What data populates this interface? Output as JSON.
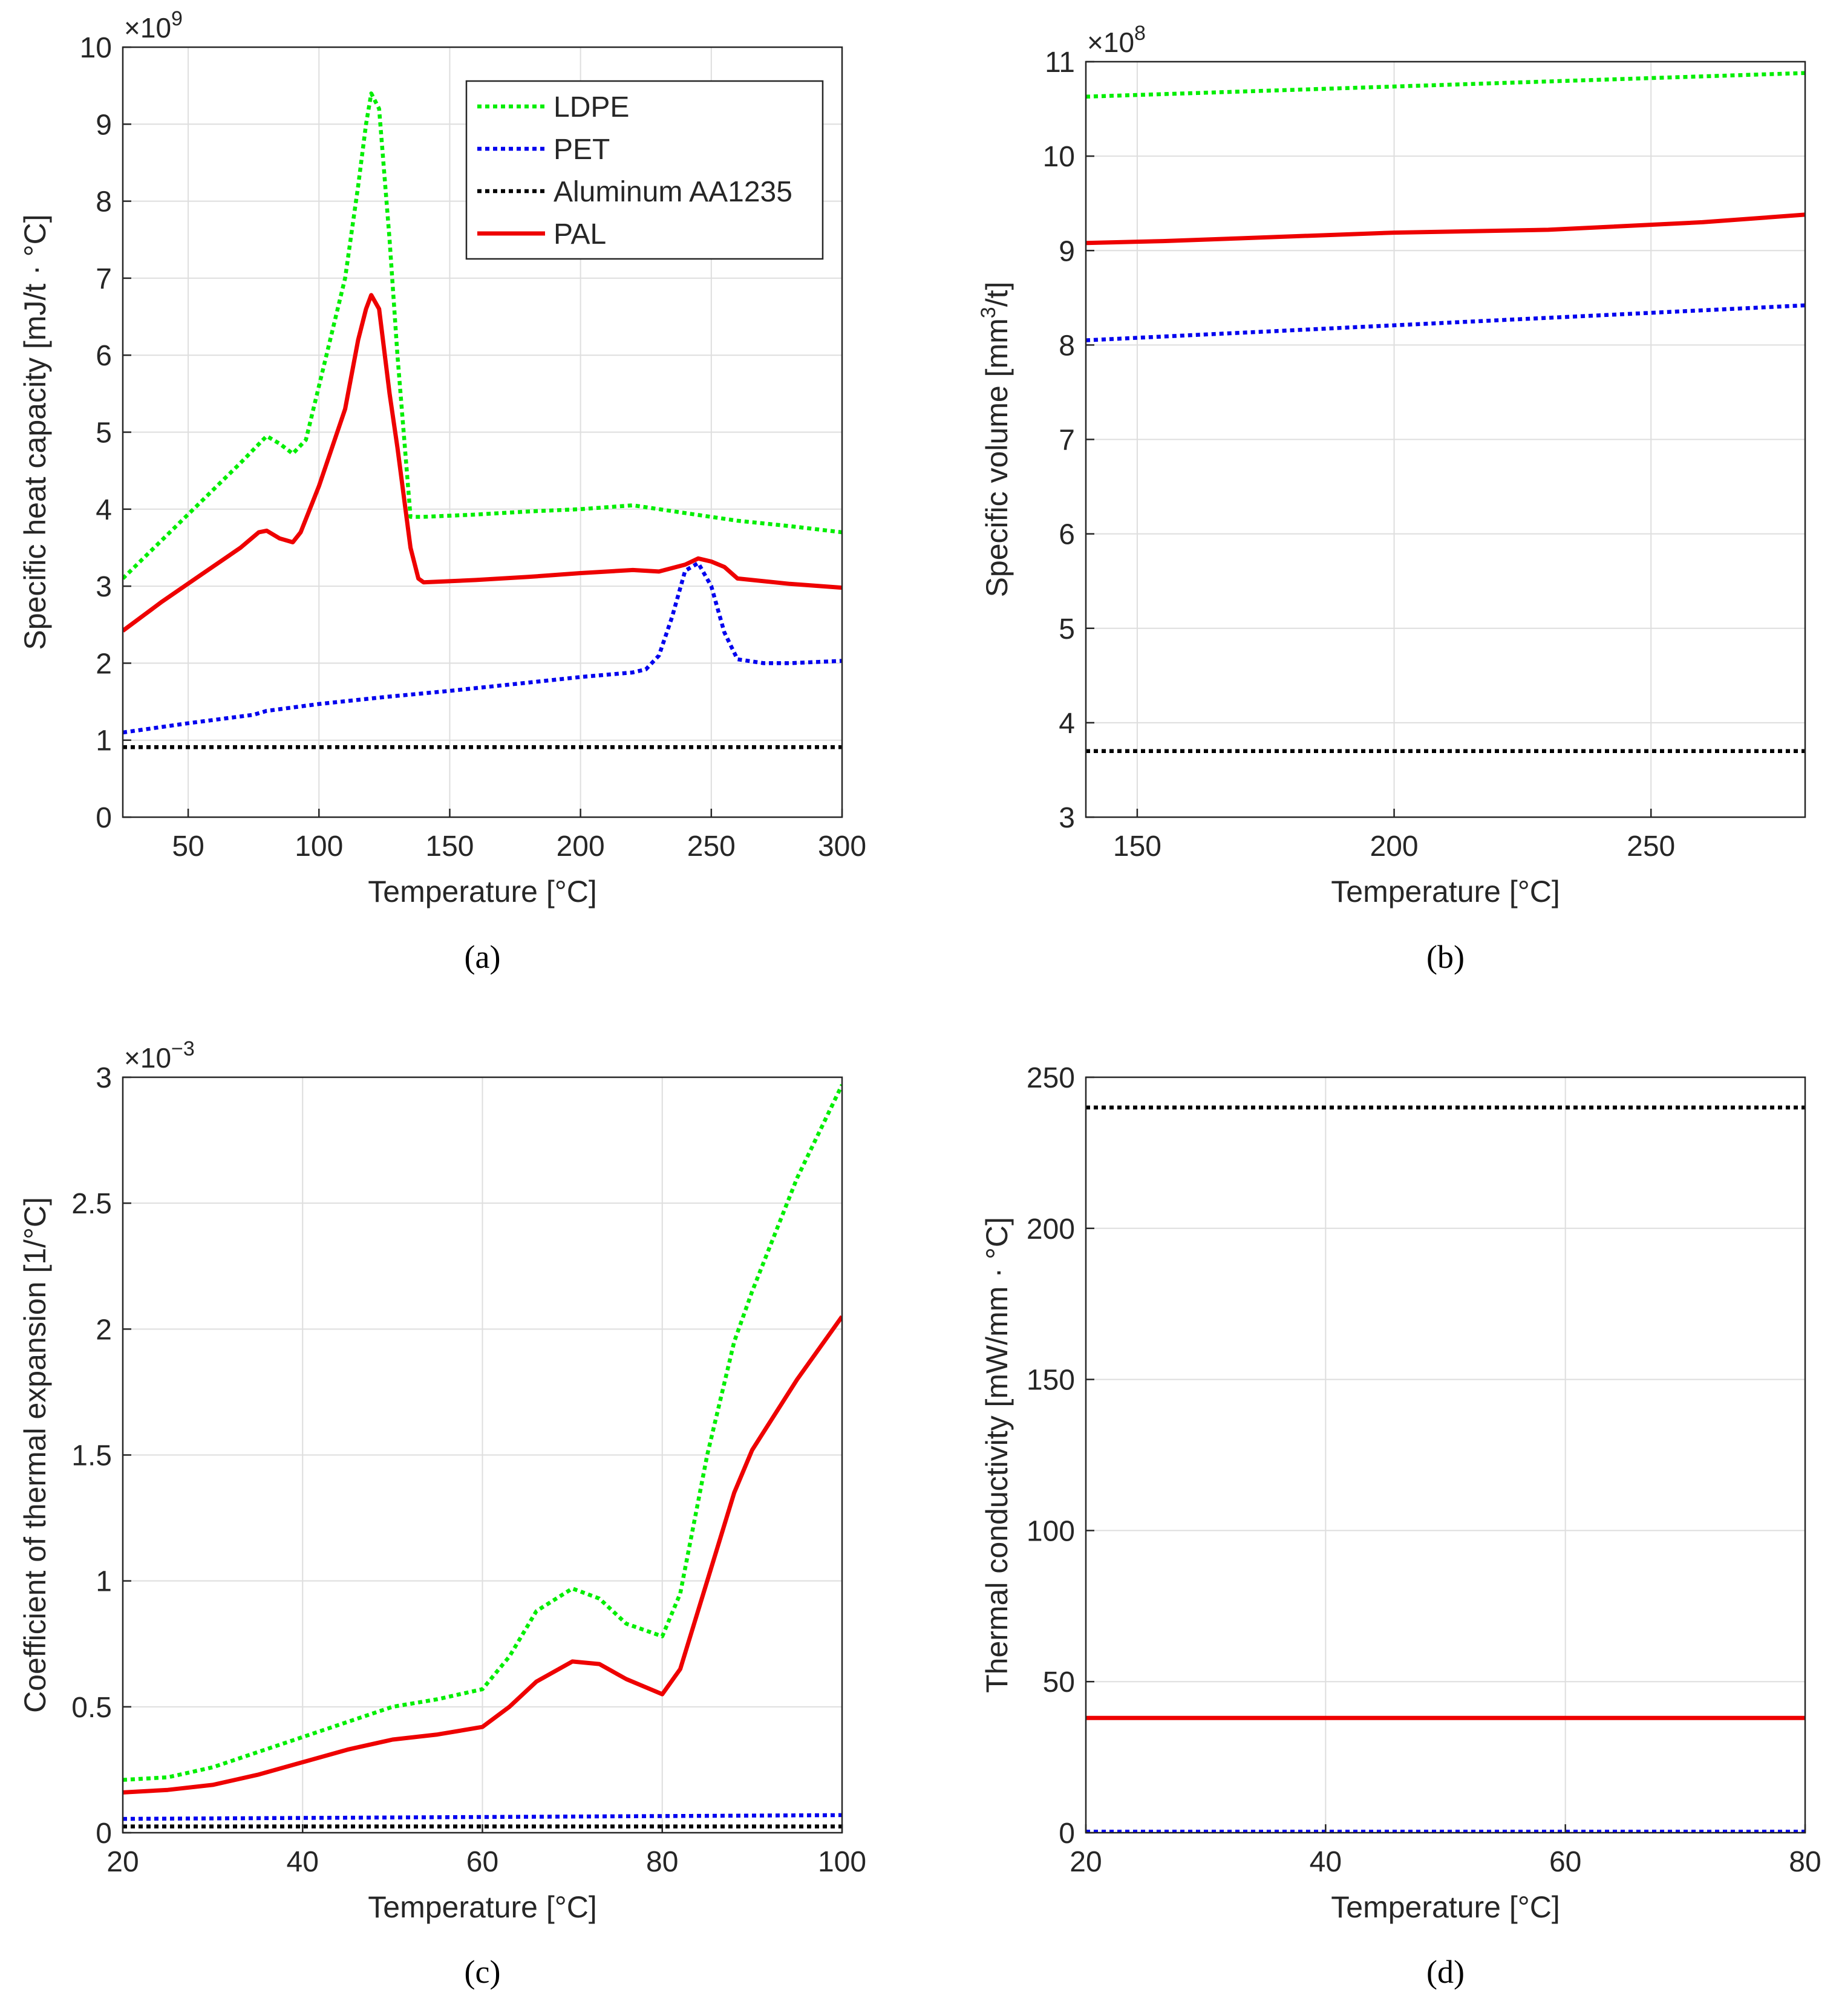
{
  "figure": {
    "panels": [
      "(a)",
      "(b)",
      "(c)",
      "(d)"
    ]
  },
  "chart_data": [
    {
      "type": "line",
      "panel": "(a)",
      "xlabel": "Temperature [°C]",
      "ylabel": "Specific heat capacity [mJ/t · °C]",
      "exponent_label": "×10",
      "exponent": "9",
      "xlim": [
        25,
        300
      ],
      "ylim": [
        0,
        10
      ],
      "xticks": [
        50,
        100,
        150,
        200,
        250,
        300
      ],
      "yticks": [
        0,
        1,
        2,
        3,
        4,
        5,
        6,
        7,
        8,
        9,
        10
      ],
      "grid": true,
      "legend": "top-right",
      "series": [
        {
          "name": "LDPE",
          "color": "#00ee00",
          "style": "dotted",
          "x": [
            25,
            40,
            55,
            70,
            80,
            85,
            90,
            95,
            100,
            110,
            115,
            118,
            120,
            123,
            127,
            130,
            135,
            140,
            160,
            180,
            200,
            220,
            240,
            260,
            280,
            300
          ],
          "y": [
            3.1,
            3.6,
            4.1,
            4.6,
            4.95,
            4.85,
            4.72,
            4.9,
            5.6,
            7.0,
            8.2,
            9.0,
            9.4,
            9.2,
            7.5,
            6.0,
            3.9,
            3.9,
            3.93,
            3.97,
            4.0,
            4.05,
            3.95,
            3.85,
            3.78,
            3.7
          ]
        },
        {
          "name": "PET",
          "color": "#0000ee",
          "style": "dotted",
          "x": [
            25,
            50,
            75,
            80,
            100,
            125,
            150,
            175,
            200,
            220,
            225,
            230,
            235,
            240,
            245,
            250,
            255,
            260,
            270,
            280,
            300
          ],
          "y": [
            1.1,
            1.22,
            1.33,
            1.38,
            1.47,
            1.56,
            1.64,
            1.73,
            1.82,
            1.88,
            1.92,
            2.1,
            2.6,
            3.2,
            3.3,
            3.0,
            2.4,
            2.05,
            2.0,
            2.0,
            2.03
          ]
        },
        {
          "name": "Aluminum AA1235",
          "color": "#000000",
          "style": "dotted",
          "x": [
            25,
            300
          ],
          "y": [
            0.91,
            0.91
          ]
        },
        {
          "name": "PAL",
          "color": "#ee0000",
          "style": "solid",
          "x": [
            25,
            40,
            55,
            70,
            77,
            80,
            85,
            90,
            93,
            100,
            110,
            115,
            118,
            120,
            123,
            127,
            130,
            135,
            138,
            140,
            160,
            180,
            200,
            220,
            230,
            240,
            245,
            250,
            255,
            260,
            280,
            300
          ],
          "y": [
            2.42,
            2.8,
            3.15,
            3.5,
            3.7,
            3.72,
            3.62,
            3.57,
            3.7,
            4.3,
            5.3,
            6.2,
            6.6,
            6.78,
            6.6,
            5.5,
            4.8,
            3.5,
            3.1,
            3.05,
            3.08,
            3.12,
            3.17,
            3.21,
            3.19,
            3.28,
            3.36,
            3.32,
            3.25,
            3.1,
            3.03,
            2.98
          ]
        }
      ]
    },
    {
      "type": "line",
      "panel": "(b)",
      "xlabel": "Temperature [°C]",
      "ylabel_main": "Specific volume [mm",
      "ylabel_sup": "3",
      "ylabel_end": "/t]",
      "exponent_label": "×10",
      "exponent": "8",
      "xlim": [
        140,
        280
      ],
      "ylim": [
        3,
        11
      ],
      "xticks": [
        150,
        200,
        250
      ],
      "yticks": [
        3,
        4,
        5,
        6,
        7,
        8,
        9,
        10,
        11
      ],
      "grid": true,
      "series": [
        {
          "color": "#00ee00",
          "style": "dotted",
          "x": [
            140,
            280
          ],
          "y": [
            10.63,
            10.88
          ]
        },
        {
          "color": "#ee0000",
          "style": "solid",
          "x": [
            140,
            155,
            170,
            200,
            230,
            260,
            280
          ],
          "y": [
            9.08,
            9.1,
            9.13,
            9.19,
            9.22,
            9.3,
            9.38
          ]
        },
        {
          "color": "#0000ee",
          "style": "dotted",
          "x": [
            140,
            280
          ],
          "y": [
            8.05,
            8.42
          ]
        },
        {
          "color": "#000000",
          "style": "dotted",
          "x": [
            140,
            280
          ],
          "y": [
            3.7,
            3.7
          ]
        }
      ]
    },
    {
      "type": "line",
      "panel": "(c)",
      "xlabel": "Temperature [°C]",
      "ylabel": "Coefficient of thermal expansion [1/°C]",
      "exponent_label": "×10",
      "exponent": "−3",
      "xlim": [
        20,
        100
      ],
      "ylim": [
        0,
        3
      ],
      "xticks": [
        20,
        40,
        60,
        80,
        100
      ],
      "yticks": [
        0,
        0.5,
        1,
        1.5,
        2,
        2.5,
        3
      ],
      "ytick_labels": [
        "0",
        "0.5",
        "1",
        "1.5",
        "2",
        "2.5",
        "3"
      ],
      "grid": true,
      "series": [
        {
          "color": "#00ee00",
          "style": "dotted",
          "x": [
            20,
            25,
            30,
            35,
            40,
            45,
            50,
            55,
            60,
            63,
            66,
            70,
            73,
            76,
            80,
            82,
            85,
            88,
            90,
            95,
            100
          ],
          "y": [
            0.21,
            0.22,
            0.26,
            0.32,
            0.38,
            0.44,
            0.5,
            0.53,
            0.57,
            0.7,
            0.88,
            0.97,
            0.93,
            0.83,
            0.78,
            0.95,
            1.5,
            1.95,
            2.15,
            2.6,
            2.97
          ]
        },
        {
          "color": "#ee0000",
          "style": "solid",
          "x": [
            20,
            25,
            30,
            35,
            40,
            45,
            50,
            55,
            60,
            63,
            66,
            70,
            73,
            76,
            80,
            82,
            85,
            88,
            90,
            95,
            100
          ],
          "y": [
            0.16,
            0.17,
            0.19,
            0.23,
            0.28,
            0.33,
            0.37,
            0.39,
            0.42,
            0.5,
            0.6,
            0.68,
            0.67,
            0.61,
            0.55,
            0.65,
            1.0,
            1.35,
            1.52,
            1.8,
            2.05
          ]
        },
        {
          "color": "#0000ee",
          "style": "dotted",
          "x": [
            20,
            100
          ],
          "y": [
            0.055,
            0.07
          ]
        },
        {
          "color": "#000000",
          "style": "dotted",
          "x": [
            20,
            100
          ],
          "y": [
            0.025,
            0.025
          ]
        }
      ]
    },
    {
      "type": "line",
      "panel": "(d)",
      "xlabel": "Temperature [°C]",
      "ylabel": "Thermal conductivity [mW/mm · °C]",
      "xlim": [
        20,
        80
      ],
      "ylim": [
        0,
        250
      ],
      "xticks": [
        20,
        40,
        60,
        80
      ],
      "yticks": [
        0,
        50,
        100,
        150,
        200,
        250
      ],
      "grid": true,
      "series": [
        {
          "color": "#000000",
          "style": "dotted",
          "x": [
            20,
            80
          ],
          "y": [
            240,
            240
          ]
        },
        {
          "color": "#ee0000",
          "style": "solid",
          "x": [
            20,
            80
          ],
          "y": [
            38,
            38
          ]
        },
        {
          "color": "#0000ee",
          "style": "dotted",
          "x": [
            20,
            80
          ],
          "y": [
            0.35,
            0.35
          ]
        }
      ]
    }
  ]
}
